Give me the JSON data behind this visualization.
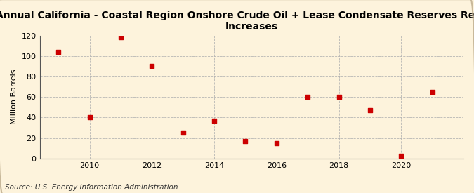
{
  "title": "Annual California - Coastal Region Onshore Crude Oil + Lease Condensate Reserves Revision\nIncreases",
  "ylabel": "Million Barrels",
  "source": "Source: U.S. Energy Information Administration",
  "years": [
    2009,
    2010,
    2011,
    2012,
    2013,
    2014,
    2015,
    2016,
    2017,
    2018,
    2019,
    2020,
    2021
  ],
  "values": [
    104,
    40,
    118,
    90,
    25,
    37,
    17,
    15,
    60,
    60,
    47,
    3,
    65
  ],
  "marker_color": "#cc0000",
  "marker_size": 4,
  "background_color": "#fdf3dc",
  "plot_bg_color": "#fdf3dc",
  "grid_color": "#b0b0b0",
  "ylim": [
    0,
    120
  ],
  "yticks": [
    0,
    20,
    40,
    60,
    80,
    100,
    120
  ],
  "xtick_years": [
    2010,
    2012,
    2014,
    2016,
    2018,
    2020
  ],
  "xlim_left": 2008.4,
  "xlim_right": 2022.0,
  "title_fontsize": 10,
  "axis_fontsize": 8,
  "source_fontsize": 7.5,
  "ylabel_fontsize": 8
}
